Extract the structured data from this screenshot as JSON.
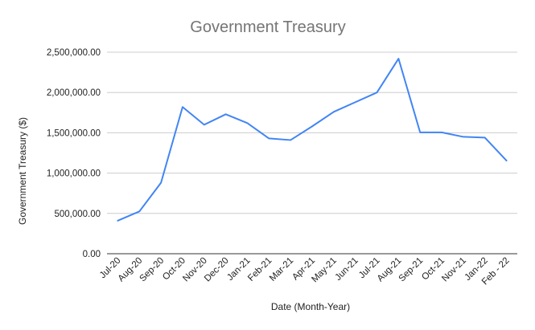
{
  "chart_data": {
    "type": "line",
    "title": "Government Treasury",
    "xlabel": "Date (Month-Year)",
    "ylabel": "Government Treasury ($)",
    "categories": [
      "Jul-20",
      "Aug-20",
      "Sep-20",
      "Oct-20",
      "Nov-20",
      "Dec-20",
      "Jan-21",
      "Feb-21",
      "Mar-21",
      "Apr-21",
      "May-21",
      "Jun-21",
      "Jul-21",
      "Aug-21",
      "Sep-21",
      "Oct-21",
      "Nov-21",
      "Jan-22",
      "Feb - 22"
    ],
    "series": [
      {
        "values": [
          410000,
          525000,
          880000,
          1820000,
          1600000,
          1730000,
          1620000,
          1430000,
          1410000,
          1580000,
          1760000,
          1880000,
          2000000,
          2420000,
          1505000,
          1505000,
          1450000,
          1440000,
          1155000
        ],
        "color": "#4285f4"
      }
    ],
    "ylim": [
      0,
      2500000
    ],
    "yticks": [
      "0.00",
      "500,000.00",
      "1,000,000.00",
      "1,500,000.00",
      "2,000,000.00",
      "2,500,000.00"
    ],
    "grid": true,
    "legend": "none"
  }
}
